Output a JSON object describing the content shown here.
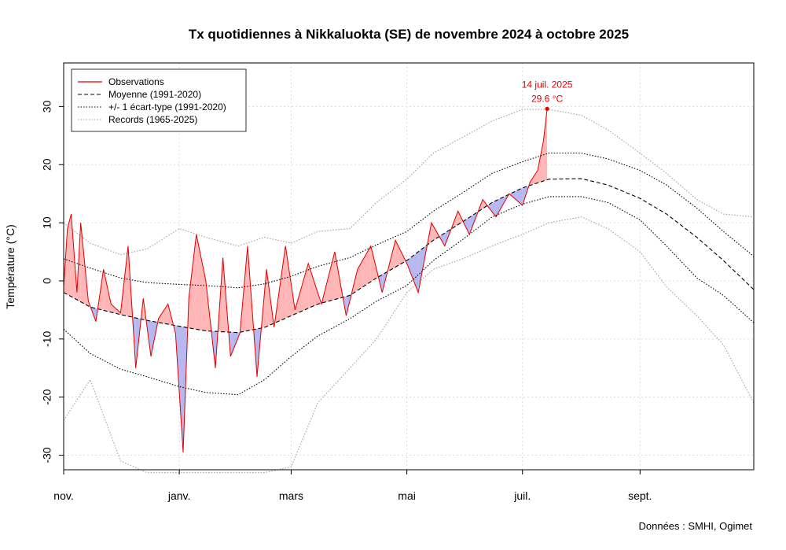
{
  "chart_data": {
    "type": "line",
    "title": "Tx quotidiennes à Nikkaluokta (SE) de novembre 2024 à octobre 2025",
    "ylabel": "Température (°C)",
    "xlabel": "",
    "ylim": [
      -32.5,
      37.5
    ],
    "xlim": [
      "2024-11-01",
      "2025-10-31"
    ],
    "y_ticks": [
      30,
      20,
      10,
      0,
      -10,
      -20,
      -30
    ],
    "x_ticks": [
      {
        "date": "2024-11-01",
        "label": "nov."
      },
      {
        "date": "2025-01-01",
        "label": "janv."
      },
      {
        "date": "2025-03-01",
        "label": "mars"
      },
      {
        "date": "2025-05-01",
        "label": "mai"
      },
      {
        "date": "2025-07-01",
        "label": "juil."
      },
      {
        "date": "2025-09-01",
        "label": "sept."
      }
    ],
    "grid": true,
    "legend_position": "top-left",
    "legend": [
      {
        "label": "Observations",
        "style": "solid",
        "color": "#e00000"
      },
      {
        "label": "Moyenne (1991-2020)",
        "style": "dashed",
        "color": "#000000"
      },
      {
        "label": "+/- 1 écart-type (1991-2020)",
        "style": "dotted",
        "color": "#000000"
      },
      {
        "label": "Records (1965-2025)",
        "style": "dotted",
        "color": "#a0a0a0"
      }
    ],
    "normal": {
      "dates": [
        "2024-11-01",
        "2024-11-15",
        "2024-12-01",
        "2024-12-15",
        "2025-01-01",
        "2025-01-15",
        "2025-02-01",
        "2025-02-15",
        "2025-03-01",
        "2025-03-15",
        "2025-04-01",
        "2025-04-15",
        "2025-05-01",
        "2025-05-15",
        "2025-06-01",
        "2025-06-15",
        "2025-07-01",
        "2025-07-15",
        "2025-08-01",
        "2025-08-15",
        "2025-09-01",
        "2025-09-15",
        "2025-10-01",
        "2025-10-15",
        "2025-10-31"
      ],
      "values": [
        -2.0,
        -4.5,
        -5.8,
        -6.8,
        -7.8,
        -8.6,
        -8.9,
        -8.0,
        -6.0,
        -4.0,
        -2.5,
        0.5,
        3.5,
        7.0,
        10.5,
        13.5,
        16.0,
        17.5,
        17.6,
        16.5,
        14.2,
        11.5,
        7.5,
        3.5,
        -1.5
      ]
    },
    "sd_upper": {
      "dates": [
        "2024-11-01",
        "2024-11-15",
        "2024-12-01",
        "2024-12-15",
        "2025-01-01",
        "2025-01-15",
        "2025-02-01",
        "2025-02-15",
        "2025-03-01",
        "2025-03-15",
        "2025-04-01",
        "2025-04-15",
        "2025-05-01",
        "2025-05-15",
        "2025-06-01",
        "2025-06-15",
        "2025-07-01",
        "2025-07-15",
        "2025-08-01",
        "2025-08-15",
        "2025-09-01",
        "2025-09-15",
        "2025-10-01",
        "2025-10-15",
        "2025-10-31"
      ],
      "values": [
        3.8,
        2.2,
        0.5,
        -0.3,
        -0.6,
        -0.8,
        -1.2,
        -0.5,
        0.8,
        2.5,
        4.0,
        6.2,
        8.5,
        12.0,
        15.5,
        18.5,
        20.5,
        22.0,
        22.0,
        21.0,
        19.0,
        16.5,
        12.5,
        8.5,
        4.2
      ]
    },
    "sd_lower": {
      "dates": [
        "2024-11-01",
        "2024-11-15",
        "2024-12-01",
        "2024-12-15",
        "2025-01-01",
        "2025-01-15",
        "2025-02-01",
        "2025-02-15",
        "2025-03-01",
        "2025-03-15",
        "2025-04-01",
        "2025-04-15",
        "2025-05-01",
        "2025-05-15",
        "2025-06-01",
        "2025-06-15",
        "2025-07-01",
        "2025-07-15",
        "2025-08-01",
        "2025-08-15",
        "2025-09-01",
        "2025-09-15",
        "2025-10-01",
        "2025-10-15",
        "2025-10-31"
      ],
      "values": [
        -8.3,
        -12.5,
        -15.2,
        -16.5,
        -18.2,
        -19.2,
        -19.6,
        -17.0,
        -13.0,
        -9.5,
        -6.5,
        -3.5,
        -0.8,
        3.5,
        7.5,
        11.0,
        13.2,
        14.5,
        14.5,
        13.5,
        10.5,
        6.0,
        0.5,
        -2.5,
        -7.2
      ]
    },
    "record_max": {
      "dates": [
        "2024-11-01",
        "2024-11-15",
        "2024-12-01",
        "2024-12-15",
        "2025-01-01",
        "2025-01-15",
        "2025-02-01",
        "2025-02-15",
        "2025-03-01",
        "2025-03-15",
        "2025-04-01",
        "2025-04-15",
        "2025-05-01",
        "2025-05-15",
        "2025-06-01",
        "2025-06-15",
        "2025-07-01",
        "2025-07-15",
        "2025-08-01",
        "2025-08-15",
        "2025-09-01",
        "2025-09-15",
        "2025-10-01",
        "2025-10-15",
        "2025-10-31"
      ],
      "values": [
        10,
        6.5,
        4.5,
        5.5,
        9,
        7.5,
        6,
        7.5,
        6.5,
        8.5,
        9,
        13.5,
        17.5,
        22,
        25,
        27.5,
        29.5,
        29.5,
        28.5,
        26,
        22,
        18.5,
        14,
        11.5,
        11
      ]
    },
    "record_min": {
      "dates": [
        "2024-11-01",
        "2024-11-15",
        "2024-12-01",
        "2024-12-15",
        "2025-01-01",
        "2025-01-15",
        "2025-02-01",
        "2025-02-15",
        "2025-03-01",
        "2025-03-15",
        "2025-04-01",
        "2025-04-15",
        "2025-05-01",
        "2025-05-15",
        "2025-06-01",
        "2025-06-15",
        "2025-07-01",
        "2025-07-15",
        "2025-08-01",
        "2025-08-15",
        "2025-09-01",
        "2025-09-15",
        "2025-10-01",
        "2025-10-15",
        "2025-10-31"
      ],
      "values": [
        -24,
        -17,
        -31,
        -33,
        -33,
        -33,
        -33,
        -33,
        -32,
        -21,
        -15,
        -10,
        -2,
        2,
        4,
        6,
        8,
        10,
        11,
        9,
        5,
        -1,
        -6,
        -11,
        -21
      ]
    },
    "observations": {
      "dates": [
        "2024-11-01",
        "2024-11-03",
        "2024-11-05",
        "2024-11-08",
        "2024-11-10",
        "2024-11-14",
        "2024-11-18",
        "2024-11-22",
        "2024-11-26",
        "2024-12-01",
        "2024-12-05",
        "2024-12-09",
        "2024-12-13",
        "2024-12-17",
        "2024-12-21",
        "2024-12-26",
        "2024-12-30",
        "2025-01-03",
        "2025-01-06",
        "2025-01-10",
        "2025-01-15",
        "2025-01-20",
        "2025-01-24",
        "2025-01-28",
        "2025-02-02",
        "2025-02-06",
        "2025-02-11",
        "2025-02-16",
        "2025-02-20",
        "2025-02-26",
        "2025-03-03",
        "2025-03-10",
        "2025-03-17",
        "2025-03-24",
        "2025-03-30",
        "2025-04-05",
        "2025-04-12",
        "2025-04-18",
        "2025-04-25",
        "2025-05-01",
        "2025-05-07",
        "2025-05-14",
        "2025-05-21",
        "2025-05-28",
        "2025-06-03",
        "2025-06-10",
        "2025-06-17",
        "2025-06-24",
        "2025-07-01",
        "2025-07-05",
        "2025-07-09",
        "2025-07-12",
        "2025-07-14"
      ],
      "values": [
        -1,
        9,
        11.5,
        -2,
        10,
        -3.5,
        -7,
        2,
        -4,
        -5.5,
        6,
        -15,
        -3,
        -13,
        -6.5,
        -4,
        -9,
        -29.5,
        -3,
        8,
        0,
        -15,
        4,
        -13,
        -9,
        6,
        -16.5,
        2,
        -8,
        6,
        -5,
        3,
        -4,
        5,
        -6,
        2,
        6,
        -2,
        7,
        3,
        -2,
        10,
        6,
        12,
        8,
        14,
        11,
        15,
        13,
        17,
        19,
        24,
        29.6
      ]
    },
    "peak_annotation": {
      "date": "2025-07-14",
      "value": 29.6,
      "label_date": "14 juil. 2025",
      "label_value": "29.6 °C"
    },
    "credit": "Données : SMHI, Ogimet"
  },
  "colors": {
    "observation": "#e00000",
    "above_fill": "#ffb6b6",
    "below_fill": "#b8b8f0",
    "record": "#a0a0a0",
    "grid": "#dcdcdc"
  }
}
